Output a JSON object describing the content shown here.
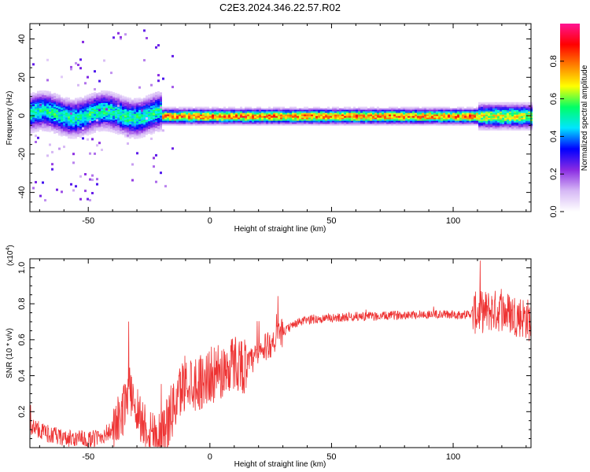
{
  "title": "C2E3.2024.346.22.57.R02",
  "chart_data": [
    {
      "type": "heatmap",
      "xlabel": "Height of straight line (km)",
      "ylabel": "Frequency (Hz)",
      "xlim": [
        -74,
        132
      ],
      "ylim": [
        -50,
        48
      ],
      "xticks": [
        -50,
        0,
        50,
        100
      ],
      "yticks": [
        -40,
        -20,
        0,
        20,
        40
      ],
      "colorbar": {
        "label": "Normalized spectral amplitude",
        "range": [
          0,
          1
        ],
        "ticks": [
          "0.0",
          "0.2",
          "0.4",
          "0.6",
          "0.8"
        ],
        "colormap": [
          "#ffffff",
          "#d6b8f5",
          "#8a2be2",
          "#0000ff",
          "#00e5ff",
          "#00ff66",
          "#ffff00",
          "#ff8000",
          "#ff0000",
          "#ff1493"
        ]
      },
      "features": [
        {
          "description_free_marker": true,
          "x_range": [
            -74,
            -20
          ],
          "freq_center": 1,
          "freq_halfwidth": 6,
          "peak_amplitude": 0.55
        },
        {
          "description_free_marker": true,
          "x_range": [
            -20,
            110
          ],
          "freq_center": 0,
          "freq_halfwidth": 2.5,
          "peak_amplitude": 0.85
        },
        {
          "description_free_marker": true,
          "x_range": [
            110,
            132
          ],
          "freq_center": 0,
          "freq_halfwidth": 4,
          "peak_amplitude": 0.7
        }
      ]
    },
    {
      "type": "line",
      "xlabel": "Height of straight line (km)",
      "ylabel": "SNR (10 * v/v)",
      "yscale_label": "(x10",
      "yscale_exp": "4",
      "xlim": [
        -74,
        132
      ],
      "ylim": [
        0,
        1.05
      ],
      "xticks": [
        -50,
        0,
        50,
        100
      ],
      "yticks": [
        "0.2",
        "0.4",
        "0.6",
        "0.8",
        "1.0"
      ],
      "line_color": "#ee3333",
      "series": [
        {
          "x": [
            -74,
            -65,
            -60,
            -55,
            -50,
            -45,
            -40,
            -36,
            -34,
            -32,
            -30,
            -28,
            -25,
            -22,
            -20,
            -15,
            -10,
            -5,
            0,
            5,
            10,
            15,
            20,
            25,
            30,
            35,
            40,
            50,
            60,
            70,
            80,
            90,
            100,
            105,
            110,
            115,
            120,
            125,
            130,
            132
          ],
          "y": [
            0.12,
            0.07,
            0.05,
            0.05,
            0.04,
            0.06,
            0.1,
            0.18,
            0.32,
            0.3,
            0.22,
            0.15,
            0.1,
            0.08,
            0.06,
            0.22,
            0.38,
            0.36,
            0.4,
            0.42,
            0.48,
            0.45,
            0.52,
            0.58,
            0.64,
            0.69,
            0.71,
            0.72,
            0.73,
            0.73,
            0.74,
            0.74,
            0.74,
            0.74,
            0.75,
            0.76,
            0.76,
            0.74,
            0.72,
            0.7
          ]
        }
      ]
    }
  ]
}
